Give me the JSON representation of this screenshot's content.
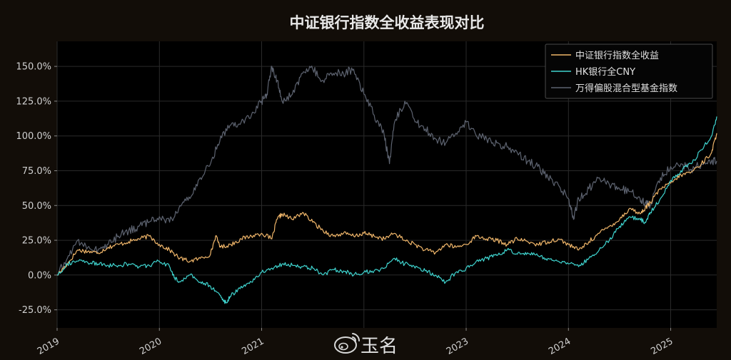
{
  "watermark": {
    "text": "玉名"
  },
  "chart_data": {
    "type": "line",
    "title": "中证银行指数全收益表现对比",
    "xlabel": "",
    "ylabel": "",
    "x_range": [
      2019.0,
      2025.45
    ],
    "ylim": [
      -38,
      168
    ],
    "x_ticks": [
      {
        "value": 2019,
        "label": "2019"
      },
      {
        "value": 2020,
        "label": "2020"
      },
      {
        "value": 2021,
        "label": "2021"
      },
      {
        "value": 2023,
        "label": "2023"
      },
      {
        "value": 2024,
        "label": "2024"
      },
      {
        "value": 2025,
        "label": "2025"
      }
    ],
    "x_grid": [
      2019,
      2020,
      2021,
      2022,
      2023,
      2024,
      2025
    ],
    "y_ticks": [
      {
        "value": -25,
        "label": "-25.0%"
      },
      {
        "value": 0,
        "label": "0.0%"
      },
      {
        "value": 25,
        "label": "25.0%"
      },
      {
        "value": 50,
        "label": "50.0%"
      },
      {
        "value": 75,
        "label": "75.0%"
      },
      {
        "value": 100,
        "label": "100.0%"
      },
      {
        "value": 125,
        "label": "125.0%"
      },
      {
        "value": 150,
        "label": "150.0%"
      }
    ],
    "grid": true,
    "legend_position": "top-right",
    "series": [
      {
        "name": "中证银行指数全收益",
        "color": "#f0b66a",
        "x": [
          2019.0,
          2019.1,
          2019.2,
          2019.3,
          2019.4,
          2019.5,
          2019.6,
          2019.7,
          2019.8,
          2019.9,
          2020.0,
          2020.1,
          2020.2,
          2020.3,
          2020.4,
          2020.5,
          2020.55,
          2020.6,
          2020.7,
          2020.8,
          2020.9,
          2021.0,
          2021.1,
          2021.15,
          2021.2,
          2021.3,
          2021.4,
          2021.5,
          2021.6,
          2021.7,
          2021.8,
          2021.9,
          2022.0,
          2022.1,
          2022.2,
          2022.3,
          2022.4,
          2022.5,
          2022.6,
          2022.7,
          2022.8,
          2022.9,
          2023.0,
          2023.1,
          2023.2,
          2023.3,
          2023.4,
          2023.5,
          2023.6,
          2023.7,
          2023.8,
          2023.9,
          2024.0,
          2024.1,
          2024.2,
          2024.3,
          2024.4,
          2024.5,
          2024.6,
          2024.7,
          2024.75,
          2024.8,
          2024.9,
          2025.0,
          2025.1,
          2025.2,
          2025.3,
          2025.4,
          2025.45
        ],
        "values": [
          0,
          8,
          18,
          17,
          16,
          20,
          22,
          24,
          26,
          28,
          22,
          18,
          12,
          10,
          12,
          15,
          28,
          20,
          22,
          26,
          28,
          30,
          26,
          40,
          44,
          40,
          45,
          38,
          32,
          28,
          30,
          28,
          30,
          28,
          26,
          30,
          25,
          22,
          18,
          16,
          22,
          20,
          22,
          28,
          26,
          25,
          22,
          26,
          24,
          22,
          24,
          26,
          22,
          18,
          24,
          30,
          35,
          40,
          48,
          44,
          48,
          52,
          62,
          66,
          72,
          74,
          80,
          88,
          102
        ]
      },
      {
        "name": "HK银行全CNY",
        "color": "#3fd4cf",
        "x": [
          2019.0,
          2019.1,
          2019.2,
          2019.3,
          2019.4,
          2019.5,
          2019.6,
          2019.7,
          2019.8,
          2019.9,
          2020.0,
          2020.1,
          2020.15,
          2020.2,
          2020.3,
          2020.4,
          2020.5,
          2020.6,
          2020.65,
          2020.7,
          2020.8,
          2020.9,
          2021.0,
          2021.1,
          2021.2,
          2021.3,
          2021.4,
          2021.5,
          2021.6,
          2021.7,
          2021.8,
          2021.9,
          2022.0,
          2022.1,
          2022.2,
          2022.3,
          2022.4,
          2022.5,
          2022.6,
          2022.7,
          2022.8,
          2022.9,
          2023.0,
          2023.1,
          2023.2,
          2023.3,
          2023.4,
          2023.5,
          2023.6,
          2023.7,
          2023.8,
          2023.9,
          2024.0,
          2024.1,
          2024.2,
          2024.3,
          2024.4,
          2024.5,
          2024.6,
          2024.7,
          2024.75,
          2024.8,
          2024.9,
          2025.0,
          2025.1,
          2025.2,
          2025.3,
          2025.4,
          2025.45
        ],
        "values": [
          0,
          8,
          10,
          9,
          8,
          7,
          7,
          8,
          6,
          7,
          10,
          6,
          -2,
          -5,
          0,
          -5,
          -8,
          -15,
          -20,
          -15,
          -8,
          -5,
          2,
          5,
          8,
          7,
          6,
          5,
          0,
          4,
          3,
          0,
          2,
          3,
          5,
          12,
          8,
          5,
          3,
          0,
          -5,
          2,
          5,
          10,
          12,
          14,
          18,
          15,
          16,
          14,
          12,
          10,
          8,
          6,
          12,
          18,
          25,
          35,
          42,
          40,
          38,
          45,
          55,
          68,
          75,
          80,
          90,
          100,
          114
        ]
      },
      {
        "name": "万得偏股混合型基金指数",
        "color": "#5d6370",
        "x": [
          2019.0,
          2019.1,
          2019.2,
          2019.3,
          2019.4,
          2019.5,
          2019.6,
          2019.7,
          2019.8,
          2019.9,
          2020.0,
          2020.1,
          2020.2,
          2020.3,
          2020.4,
          2020.5,
          2020.6,
          2020.7,
          2020.8,
          2020.9,
          2021.0,
          2021.05,
          2021.1,
          2021.15,
          2021.2,
          2021.3,
          2021.4,
          2021.5,
          2021.6,
          2021.7,
          2021.8,
          2021.9,
          2022.0,
          2022.1,
          2022.2,
          2022.25,
          2022.3,
          2022.4,
          2022.5,
          2022.6,
          2022.7,
          2022.8,
          2022.9,
          2023.0,
          2023.1,
          2023.2,
          2023.3,
          2023.4,
          2023.5,
          2023.6,
          2023.7,
          2023.8,
          2023.9,
          2024.0,
          2024.05,
          2024.1,
          2024.2,
          2024.3,
          2024.4,
          2024.5,
          2024.6,
          2024.7,
          2024.75,
          2024.8,
          2024.9,
          2025.0,
          2025.1,
          2025.2,
          2025.3,
          2025.4,
          2025.45
        ],
        "values": [
          0,
          12,
          25,
          20,
          18,
          22,
          28,
          32,
          35,
          38,
          42,
          38,
          50,
          55,
          70,
          80,
          100,
          108,
          110,
          115,
          125,
          130,
          150,
          140,
          125,
          130,
          145,
          148,
          140,
          145,
          145,
          148,
          130,
          115,
          100,
          80,
          110,
          125,
          110,
          105,
          98,
          95,
          102,
          110,
          100,
          98,
          95,
          92,
          88,
          82,
          78,
          70,
          65,
          55,
          40,
          55,
          62,
          70,
          65,
          62,
          60,
          55,
          52,
          50,
          70,
          78,
          80,
          76,
          80,
          82,
          82
        ]
      }
    ]
  }
}
